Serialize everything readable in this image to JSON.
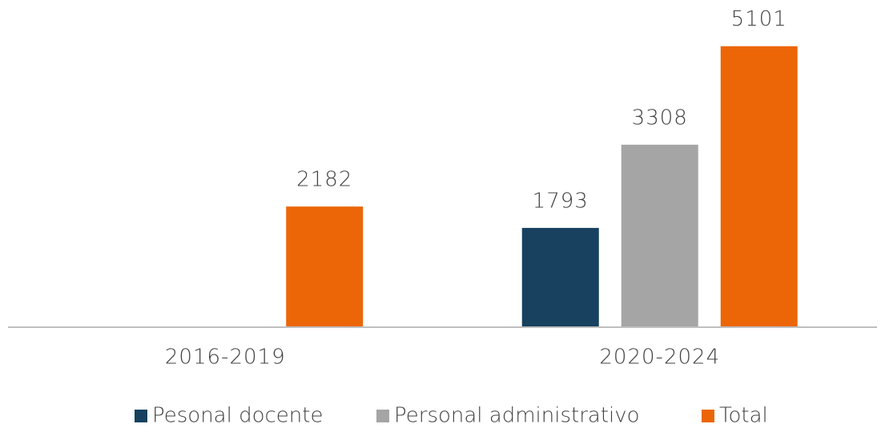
{
  "chart_data": {
    "type": "bar",
    "categories": [
      "2016-2019",
      "2020-2024"
    ],
    "series": [
      {
        "name": "Pesonal docente",
        "color": "#17415f",
        "values": [
          null,
          1793
        ]
      },
      {
        "name": "Personal administrativo",
        "color": "#a5a5a5",
        "values": [
          null,
          3308
        ]
      },
      {
        "name": "Total",
        "color": "#ec6608",
        "values": [
          2182,
          5101
        ]
      }
    ],
    "ylim": [
      0,
      6000
    ],
    "grid": false,
    "legend": "bottom"
  }
}
